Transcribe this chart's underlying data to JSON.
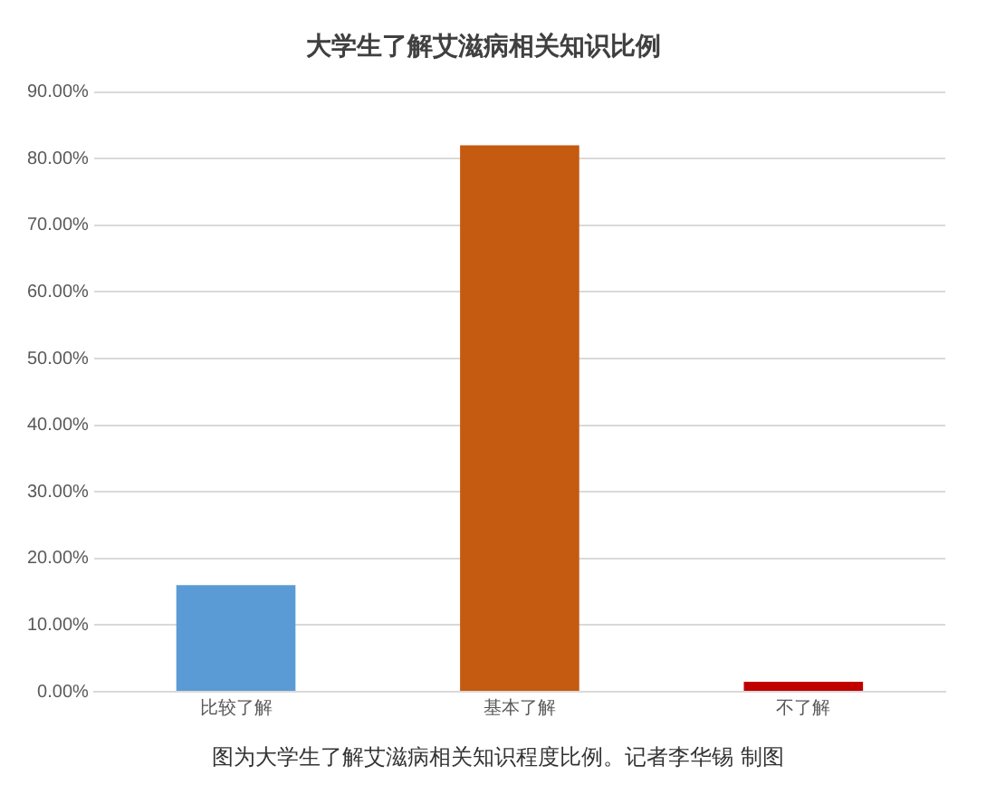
{
  "chart_data": {
    "type": "bar",
    "title": "大学生了解艾滋病相关知识比例",
    "categories": [
      "比较了解",
      "基本了解",
      "不了解"
    ],
    "values": [
      16.0,
      82.0,
      1.5
    ],
    "colors": [
      "#5b9bd5",
      "#c55a11",
      "#c00000"
    ],
    "ylim": [
      0,
      90
    ],
    "yticks": [
      {
        "value": 0,
        "label": "0.00%"
      },
      {
        "value": 10,
        "label": "10.00%"
      },
      {
        "value": 20,
        "label": "20.00%"
      },
      {
        "value": 30,
        "label": "30.00%"
      },
      {
        "value": 40,
        "label": "40.00%"
      },
      {
        "value": 50,
        "label": "50.00%"
      },
      {
        "value": 60,
        "label": "60.00%"
      },
      {
        "value": 70,
        "label": "70.00%"
      },
      {
        "value": 80,
        "label": "80.00%"
      },
      {
        "value": 90,
        "label": "90.00%"
      }
    ],
    "grid": "y",
    "legend": false,
    "annotations": [
      "图为大学生了解艾滋病相关知识程度比例。记者李华锡 制图"
    ]
  }
}
